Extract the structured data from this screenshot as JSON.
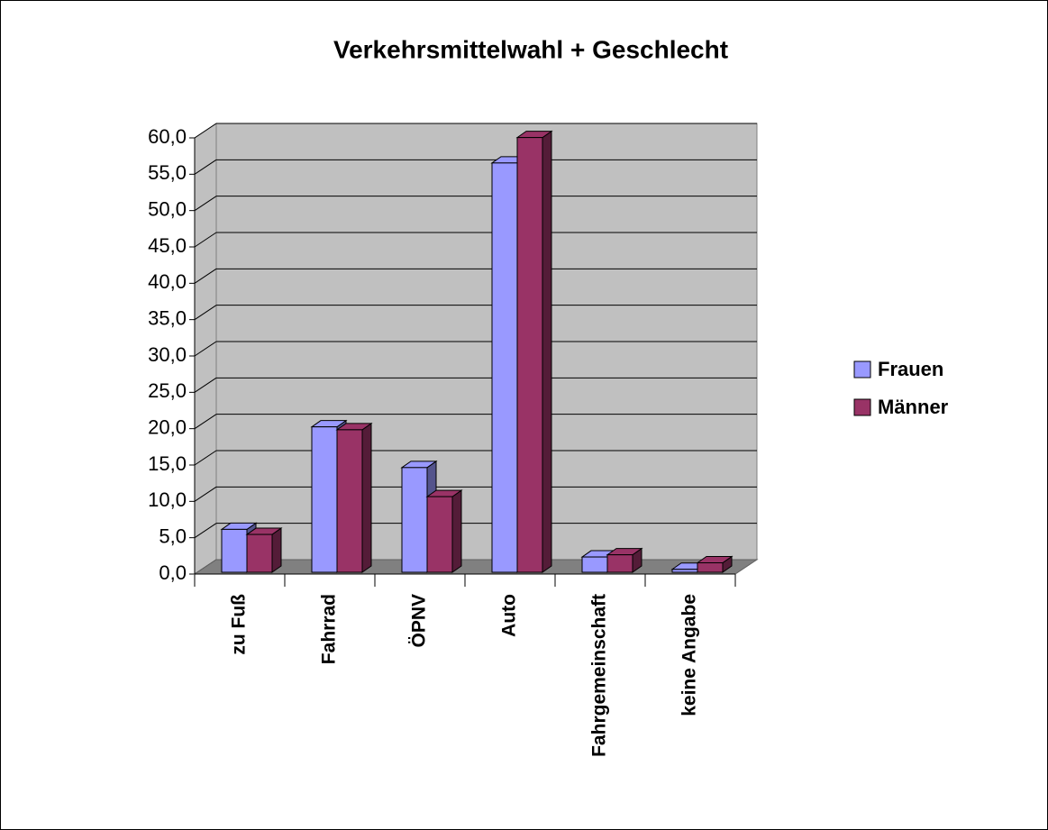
{
  "chart_data": {
    "type": "bar3d",
    "title": "Verkehrsmittelwahl + Geschlecht",
    "categories": [
      "zu Fuß",
      "Fahrrad",
      "ÖPNV",
      "Auto",
      "Fahrgemeinschaft",
      "keine Angabe"
    ],
    "series": [
      {
        "name": "Frauen",
        "color": "#9999ff",
        "values": [
          5.9,
          20.0,
          14.4,
          56.3,
          2.1,
          0.4
        ]
      },
      {
        "name": "Männer",
        "color": "#993366",
        "values": [
          5.2,
          19.6,
          10.4,
          59.8,
          2.4,
          1.3
        ]
      }
    ],
    "ylim": [
      0,
      60
    ],
    "yticks": [
      {
        "value": 0,
        "label": "0,0"
      },
      {
        "value": 5,
        "label": "5,0"
      },
      {
        "value": 10,
        "label": "10,0"
      },
      {
        "value": 15,
        "label": "15,0"
      },
      {
        "value": 20,
        "label": "20,0"
      },
      {
        "value": 25,
        "label": "25,0"
      },
      {
        "value": 30,
        "label": "30,0"
      },
      {
        "value": 35,
        "label": "35,0"
      },
      {
        "value": 40,
        "label": "40,0"
      },
      {
        "value": 45,
        "label": "45,0"
      },
      {
        "value": 50,
        "label": "50,0"
      },
      {
        "value": 55,
        "label": "55,0"
      },
      {
        "value": 60,
        "label": "60,0"
      }
    ],
    "grid": true,
    "legend": "right"
  }
}
